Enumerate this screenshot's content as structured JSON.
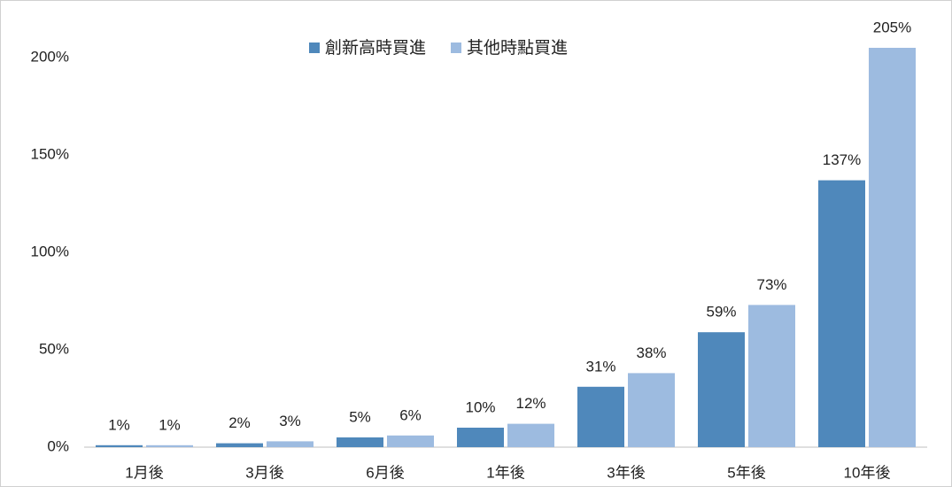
{
  "chart_data": {
    "type": "bar",
    "categories": [
      "1月後",
      "3月後",
      "6月後",
      "1年後",
      "3年後",
      "5年後",
      "10年後"
    ],
    "series": [
      {
        "name": "創新高時買進",
        "color": "#4f88bb",
        "values": [
          1,
          2,
          5,
          10,
          31,
          59,
          137
        ],
        "value_labels": [
          "1%",
          "2%",
          "5%",
          "10%",
          "31%",
          "59%",
          "137%"
        ]
      },
      {
        "name": "其他時點買進",
        "color": "#9dbbe0",
        "values": [
          1,
          3,
          6,
          12,
          38,
          73,
          205
        ],
        "value_labels": [
          "1%",
          "3%",
          "6%",
          "12%",
          "38%",
          "73%",
          "205%"
        ]
      }
    ],
    "ylim": [
      0,
      220
    ],
    "yticks": [
      {
        "value": 0,
        "label": "0%"
      },
      {
        "value": 50,
        "label": "50%"
      },
      {
        "value": 100,
        "label": "100%"
      },
      {
        "value": 150,
        "label": "150%"
      },
      {
        "value": 200,
        "label": "200%"
      }
    ],
    "grid": false,
    "legend": "top"
  }
}
